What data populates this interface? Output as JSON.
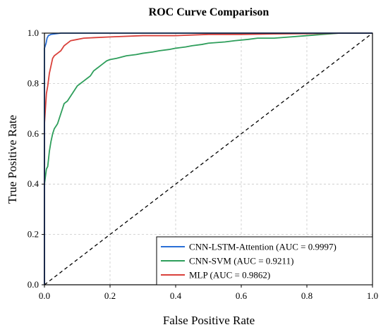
{
  "chart_data": {
    "type": "line",
    "title": "ROC Curve Comparison",
    "xlabel": "False Positive Rate",
    "ylabel": "True Positive Rate",
    "xlim": [
      0.0,
      1.0
    ],
    "ylim": [
      0.0,
      1.0
    ],
    "xticks": [
      "0.0",
      "0.2",
      "0.4",
      "0.6",
      "0.8",
      "1.0"
    ],
    "yticks": [
      "0.0",
      "0.2",
      "0.4",
      "0.6",
      "0.8",
      "1.0"
    ],
    "grid": true,
    "legend_position": "lower-right",
    "series": [
      {
        "name": "CNN-LSTM-Attention (AUC = 0.9997)",
        "color": "#2a6fd6",
        "points": [
          [
            0,
            0
          ],
          [
            0,
            0.94
          ],
          [
            0.005,
            0.96
          ],
          [
            0.008,
            0.98
          ],
          [
            0.012,
            0.99
          ],
          [
            0.02,
            0.995
          ],
          [
            0.05,
            1.0
          ],
          [
            1.0,
            1.0
          ]
        ]
      },
      {
        "name": "CNN-SVM (AUC = 0.9211)",
        "color": "#2e9e5b",
        "points": [
          [
            0,
            0
          ],
          [
            0,
            0.4
          ],
          [
            0.003,
            0.43
          ],
          [
            0.006,
            0.46
          ],
          [
            0.01,
            0.47
          ],
          [
            0.015,
            0.53
          ],
          [
            0.02,
            0.57
          ],
          [
            0.025,
            0.6
          ],
          [
            0.03,
            0.62
          ],
          [
            0.035,
            0.63
          ],
          [
            0.04,
            0.64
          ],
          [
            0.045,
            0.66
          ],
          [
            0.05,
            0.68
          ],
          [
            0.055,
            0.7
          ],
          [
            0.06,
            0.72
          ],
          [
            0.07,
            0.73
          ],
          [
            0.08,
            0.75
          ],
          [
            0.09,
            0.77
          ],
          [
            0.1,
            0.79
          ],
          [
            0.11,
            0.8
          ],
          [
            0.12,
            0.81
          ],
          [
            0.13,
            0.82
          ],
          [
            0.14,
            0.83
          ],
          [
            0.15,
            0.85
          ],
          [
            0.16,
            0.86
          ],
          [
            0.17,
            0.87
          ],
          [
            0.18,
            0.88
          ],
          [
            0.19,
            0.89
          ],
          [
            0.2,
            0.895
          ],
          [
            0.22,
            0.9
          ],
          [
            0.25,
            0.91
          ],
          [
            0.28,
            0.915
          ],
          [
            0.3,
            0.92
          ],
          [
            0.33,
            0.925
          ],
          [
            0.35,
            0.93
          ],
          [
            0.38,
            0.935
          ],
          [
            0.4,
            0.94
          ],
          [
            0.43,
            0.945
          ],
          [
            0.45,
            0.95
          ],
          [
            0.48,
            0.955
          ],
          [
            0.5,
            0.96
          ],
          [
            0.55,
            0.965
          ],
          [
            0.58,
            0.97
          ],
          [
            0.62,
            0.975
          ],
          [
            0.65,
            0.98
          ],
          [
            0.7,
            0.98
          ],
          [
            0.75,
            0.985
          ],
          [
            0.8,
            0.99
          ],
          [
            0.85,
            0.995
          ],
          [
            0.9,
            1.0
          ],
          [
            1.0,
            1.0
          ]
        ]
      },
      {
        "name": "MLP (AUC = 0.9862)",
        "color": "#d9413b",
        "points": [
          [
            0,
            0
          ],
          [
            0,
            0.64
          ],
          [
            0.003,
            0.7
          ],
          [
            0.006,
            0.76
          ],
          [
            0.01,
            0.79
          ],
          [
            0.015,
            0.84
          ],
          [
            0.02,
            0.87
          ],
          [
            0.025,
            0.9
          ],
          [
            0.03,
            0.91
          ],
          [
            0.04,
            0.92
          ],
          [
            0.05,
            0.93
          ],
          [
            0.06,
            0.95
          ],
          [
            0.07,
            0.96
          ],
          [
            0.08,
            0.97
          ],
          [
            0.1,
            0.975
          ],
          [
            0.12,
            0.98
          ],
          [
            0.15,
            0.982
          ],
          [
            0.2,
            0.985
          ],
          [
            0.3,
            0.99
          ],
          [
            0.4,
            0.99
          ],
          [
            0.5,
            0.995
          ],
          [
            0.6,
            0.995
          ],
          [
            0.7,
            0.997
          ],
          [
            0.8,
            0.998
          ],
          [
            0.92,
            1.0
          ],
          [
            1.0,
            1.0
          ]
        ]
      }
    ],
    "diagonal": {
      "color": "#000000",
      "style": "dashed"
    }
  }
}
